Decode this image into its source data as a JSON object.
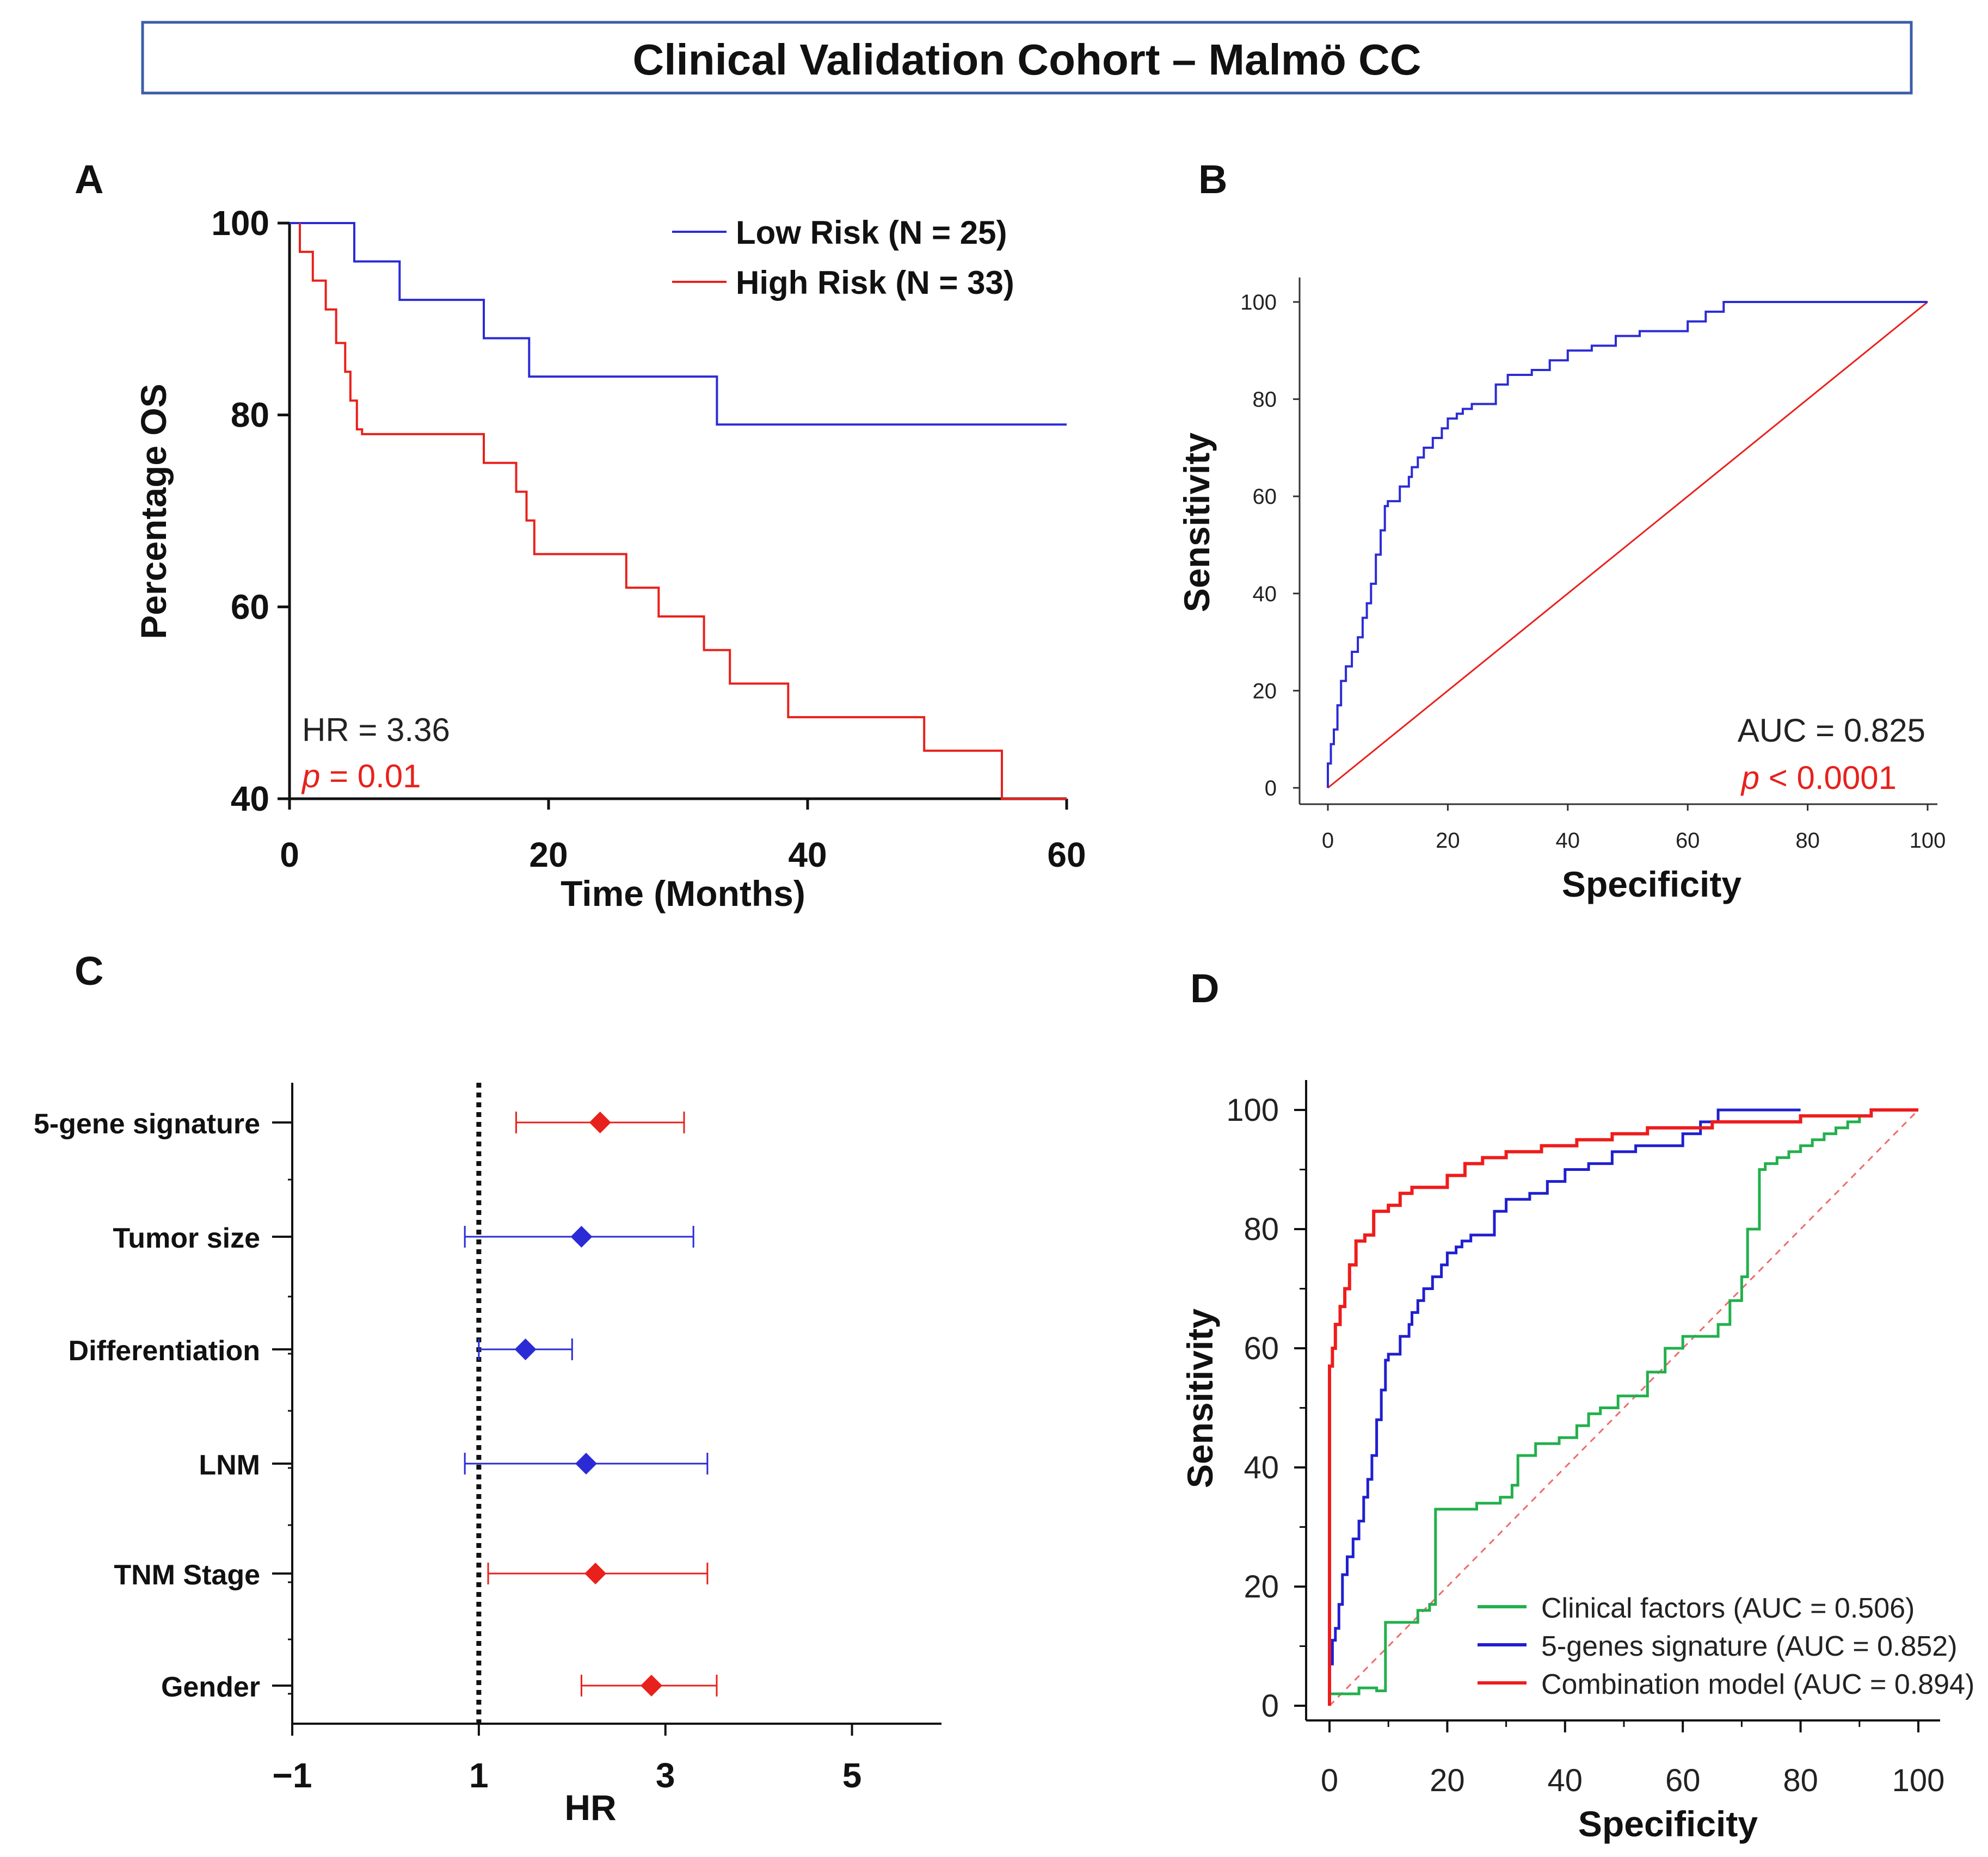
{
  "figure_title": "Clinical Validation Cohort – Malmö CC",
  "colors": {
    "low_risk": "#2b2bd6",
    "high_risk": "#e8211c",
    "clinical": "#22b04c",
    "genes": "#1f1fd0",
    "combination": "#ee1c1c",
    "reference": "#f06a6a",
    "frame": "#3b5ea8"
  },
  "chart_data": [
    {
      "panel": "A",
      "type": "line",
      "xlabel": "Time (Months)",
      "ylabel": "Percentage OS",
      "xlim": [
        0,
        60
      ],
      "ylim": [
        40,
        100
      ],
      "xticks": [
        "0",
        "20",
        "40",
        "60"
      ],
      "yticks": [
        "40",
        "60",
        "80",
        "100"
      ],
      "legend": [
        "Low Risk (N = 25)",
        "High Risk (N = 33)"
      ],
      "annotations": {
        "hr": "HR = 3.36",
        "p_symbol": "p",
        "p_value": " = 0.01"
      },
      "series": [
        {
          "name": "Low Risk (N = 25)",
          "step": true,
          "x": [
            0,
            5,
            5,
            8.5,
            8.5,
            15,
            15,
            18.5,
            18.5,
            33,
            33,
            60
          ],
          "y": [
            100,
            100,
            96,
            96,
            92,
            92,
            88,
            88,
            84,
            84,
            79,
            79
          ]
        },
        {
          "name": "High Risk (N = 33)",
          "step": true,
          "x": [
            0.8,
            0.8,
            1.8,
            1.8,
            2.8,
            2.8,
            3.6,
            3.6,
            4.3,
            4.3,
            4.7,
            4.7,
            5.2,
            5.2,
            5.6,
            5.6,
            15,
            15,
            17.5,
            17.5,
            18.3,
            18.3,
            18.9,
            18.9,
            26,
            26,
            28.5,
            28.5,
            32,
            32,
            34,
            34,
            38.5,
            38.5,
            49,
            49,
            55,
            55,
            60
          ],
          "y": [
            100,
            97,
            97,
            94,
            94,
            91,
            91,
            87.5,
            87.5,
            84.5,
            84.5,
            81.5,
            81.5,
            78.5,
            78.5,
            78,
            78,
            75,
            75,
            72,
            72,
            69,
            69,
            65.5,
            65.5,
            62,
            62,
            59,
            59,
            55.5,
            55.5,
            52,
            52,
            48.5,
            48.5,
            45,
            45,
            40,
            40
          ]
        }
      ]
    },
    {
      "panel": "B",
      "type": "line",
      "xlabel": "Specificity",
      "ylabel": "Sensitivity",
      "xlim": [
        0,
        100
      ],
      "ylim": [
        0,
        100
      ],
      "xticks": [
        "0",
        "20",
        "40",
        "60",
        "80",
        "100"
      ],
      "yticks": [
        "0",
        "20",
        "40",
        "60",
        "80",
        "100"
      ],
      "annotations": {
        "auc": "AUC = 0.825",
        "p_symbol": "p",
        "p_value": " < 0.0001"
      },
      "series": [
        {
          "name": "ROC",
          "step": true,
          "x": [
            0,
            0,
            0.5,
            0.5,
            1,
            1,
            1.6,
            1.6,
            2.2,
            2.2,
            3,
            3,
            4,
            4,
            5,
            5,
            5.8,
            5.8,
            6.5,
            6.5,
            7.2,
            7.2,
            8,
            8,
            8.8,
            8.8,
            9.5,
            9.5,
            10,
            10,
            12,
            12,
            13.5,
            13.5,
            14,
            14,
            15,
            15,
            16,
            16,
            17.5,
            17.5,
            19,
            19,
            20,
            20,
            21.5,
            21.5,
            22.5,
            22.5,
            24,
            24,
            28,
            28,
            30,
            30,
            34,
            34,
            37,
            37,
            40,
            40,
            44,
            44,
            48,
            48,
            52,
            52,
            60,
            60,
            63,
            63,
            66,
            66,
            100
          ],
          "y": [
            0,
            5,
            5,
            9,
            9,
            12,
            12,
            17,
            17,
            22,
            22,
            25,
            25,
            28,
            28,
            31,
            31,
            35,
            35,
            38,
            38,
            42,
            42,
            48,
            48,
            53,
            53,
            58,
            58,
            59,
            59,
            62,
            62,
            64,
            64,
            66,
            66,
            68,
            68,
            70,
            70,
            72,
            72,
            74,
            74,
            76,
            76,
            77,
            77,
            78,
            78,
            79,
            79,
            83,
            83,
            85,
            85,
            86,
            86,
            88,
            88,
            90,
            90,
            91,
            91,
            93,
            93,
            94,
            94,
            96,
            96,
            98,
            98,
            100,
            100
          ]
        },
        {
          "name": "Reference",
          "step": false,
          "x": [
            0,
            100
          ],
          "y": [
            0,
            100
          ]
        }
      ]
    },
    {
      "panel": "C",
      "type": "scatter",
      "xlabel": "HR",
      "xlim": [
        -1,
        6
      ],
      "xticks": [
        "−1",
        "1",
        "3",
        "5"
      ],
      "reference_line": 1,
      "series": [
        {
          "name": "5-gene signature",
          "hr": 2.3,
          "ci": [
            1.4,
            3.2
          ],
          "color": "#e8211c"
        },
        {
          "name": "Tumor size",
          "hr": 2.1,
          "ci": [
            0.85,
            3.3
          ],
          "color": "#2b2bd6"
        },
        {
          "name": "Differentiation",
          "hr": 1.5,
          "ci": [
            1.0,
            2.0
          ],
          "color": "#2b2bd6"
        },
        {
          "name": "LNM",
          "hr": 2.15,
          "ci": [
            0.85,
            3.45
          ],
          "color": "#2b2bd6"
        },
        {
          "name": "TNM Stage",
          "hr": 2.25,
          "ci": [
            1.1,
            3.45
          ],
          "color": "#e8211c"
        },
        {
          "name": "Gender",
          "hr": 2.85,
          "ci": [
            2.1,
            3.55
          ],
          "color": "#e8211c"
        }
      ]
    },
    {
      "panel": "D",
      "type": "line",
      "xlabel": "Specificity",
      "ylabel": "Sensitivity",
      "xlim": [
        0,
        100
      ],
      "ylim": [
        0,
        100
      ],
      "xticks": [
        "0",
        "20",
        "40",
        "60",
        "80",
        "100"
      ],
      "yticks": [
        "0",
        "20",
        "40",
        "60",
        "80",
        "100"
      ],
      "legend": [
        "Clinical factors (AUC = 0.506)",
        "5-genes signature (AUC = 0.852)",
        "Combination model (AUC = 0.894)"
      ],
      "series": [
        {
          "name": "Clinical factors (AUC = 0.506)",
          "step": true,
          "x": [
            0,
            0,
            5,
            5,
            8,
            8,
            9.5,
            9.5,
            15,
            15,
            17,
            17,
            18,
            18,
            25,
            25,
            29,
            29,
            31,
            31,
            32,
            32,
            35,
            35,
            39,
            39,
            42,
            42,
            44,
            44,
            46,
            46,
            49,
            49,
            54,
            54,
            57,
            57,
            60,
            60,
            66,
            66,
            68,
            68,
            70,
            70,
            71,
            71,
            73,
            73,
            74,
            74,
            76,
            76,
            78,
            78,
            80,
            80,
            82,
            82,
            84,
            84,
            86,
            86,
            88,
            88,
            90,
            90,
            92,
            92,
            100
          ],
          "y": [
            0,
            2,
            2,
            3,
            3,
            2.5,
            2.5,
            14,
            14,
            16,
            16,
            17,
            17,
            33,
            33,
            34,
            34,
            35,
            35,
            37,
            37,
            42,
            42,
            44,
            44,
            45,
            45,
            47,
            47,
            49,
            49,
            50,
            50,
            52,
            52,
            56,
            56,
            60,
            60,
            62,
            62,
            64,
            64,
            68,
            68,
            72,
            72,
            80,
            80,
            90,
            90,
            91,
            91,
            92,
            92,
            93,
            93,
            94,
            94,
            95,
            95,
            96,
            96,
            97,
            97,
            98,
            98,
            99,
            99,
            100,
            100
          ]
        },
        {
          "name": "5-genes signature (AUC = 0.852)",
          "step": true,
          "x": [
            0,
            0,
            0.5,
            0.5,
            1,
            1,
            1.6,
            1.6,
            2.2,
            2.2,
            3,
            3,
            4,
            4,
            5,
            5,
            5.8,
            5.8,
            6.5,
            6.5,
            7.2,
            7.2,
            8,
            8,
            8.8,
            8.8,
            9.5,
            9.5,
            10,
            10,
            12,
            12,
            13.5,
            13.5,
            14,
            14,
            15,
            15,
            16,
            16,
            17.5,
            17.5,
            19,
            19,
            20,
            20,
            21.5,
            21.5,
            22.5,
            22.5,
            24,
            24,
            28,
            28,
            30,
            30,
            34,
            34,
            37,
            37,
            40,
            40,
            44,
            44,
            48,
            48,
            52,
            52,
            60,
            60,
            63,
            63,
            66,
            66,
            80
          ],
          "y": [
            5,
            7,
            7,
            11,
            11,
            13,
            13,
            17,
            17,
            22,
            22,
            25,
            25,
            28,
            28,
            31,
            31,
            35,
            35,
            38,
            38,
            42,
            42,
            48,
            48,
            53,
            53,
            58,
            58,
            59,
            59,
            62,
            62,
            64,
            64,
            66,
            66,
            68,
            68,
            70,
            70,
            72,
            72,
            74,
            74,
            76,
            76,
            77,
            77,
            78,
            78,
            79,
            79,
            83,
            83,
            85,
            85,
            86,
            86,
            88,
            88,
            90,
            90,
            91,
            91,
            93,
            93,
            94,
            94,
            96,
            96,
            98,
            98,
            100,
            100
          ]
        },
        {
          "name": "Combination model (AUC = 0.894)",
          "step": true,
          "x": [
            0,
            0,
            0.5,
            0.5,
            1,
            1,
            1.8,
            1.8,
            2.6,
            2.6,
            3.4,
            3.4,
            4.5,
            4.5,
            6,
            6,
            7.5,
            7.5,
            10,
            10,
            12,
            12,
            14,
            14,
            20,
            20,
            23,
            23,
            26,
            26,
            30,
            30,
            36,
            36,
            42,
            42,
            48,
            48,
            54,
            54,
            65,
            65,
            80,
            80,
            92,
            92,
            100
          ],
          "y": [
            0,
            57,
            57,
            60,
            60,
            64,
            64,
            67,
            67,
            70,
            70,
            74,
            74,
            78,
            78,
            79,
            79,
            83,
            83,
            84,
            84,
            86,
            86,
            87,
            87,
            89,
            89,
            91,
            91,
            92,
            92,
            93,
            93,
            94,
            94,
            95,
            95,
            96,
            96,
            97,
            97,
            98,
            98,
            99,
            99,
            100,
            100
          ]
        },
        {
          "name": "Reference",
          "step": false,
          "x": [
            0,
            100
          ],
          "y": [
            0,
            100
          ]
        }
      ]
    }
  ]
}
